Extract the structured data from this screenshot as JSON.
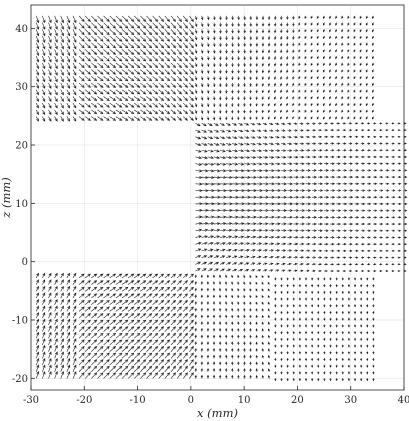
{
  "chart_data": {
    "type": "quiver",
    "xlabel": "x (mm)",
    "ylabel": "z (mm)",
    "xlim": [
      -30,
      40
    ],
    "ylim": [
      -22,
      44
    ],
    "xticks": [
      -30,
      -20,
      -10,
      0,
      10,
      20,
      30,
      40
    ],
    "yticks": [
      -20,
      -10,
      0,
      10,
      20,
      30,
      40
    ],
    "xtick_labels": [
      "-30",
      "-20",
      "-10",
      "0",
      "10",
      "20",
      "30",
      "40"
    ],
    "ytick_labels": [
      "-20",
      "-10",
      "0",
      "10",
      "20",
      "30",
      "40"
    ],
    "grid": true,
    "arrow_color": "#1a1a1a",
    "upper_region": {
      "x": [
        -29,
        35
      ],
      "z": [
        24,
        43
      ]
    },
    "upper_step_top": 24,
    "right_region": {
      "x": [
        0,
        40
      ],
      "z": [
        -2,
        24
      ]
    },
    "lower_region": {
      "x": [
        -29,
        35
      ],
      "z": [
        -20,
        -2
      ]
    },
    "blank_region": {
      "x": [
        -30,
        0
      ],
      "z": [
        -2,
        24
      ]
    },
    "grid_spacing": {
      "dx": 1.0,
      "dz": 1.0
    },
    "field_description": [
      {
        "zone": "upper-left",
        "direction": "down-right, curving"
      },
      {
        "zone": "upper-right",
        "direction": "down-left toward channel"
      },
      {
        "zone": "channel x>0, z 0..24",
        "direction": "strong rightward, converging"
      },
      {
        "zone": "lower-left",
        "direction": "up-right"
      },
      {
        "zone": "lower-right",
        "direction": "weak downward"
      }
    ]
  }
}
